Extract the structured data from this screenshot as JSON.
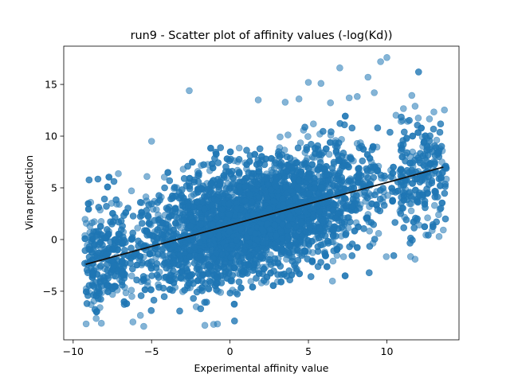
{
  "chart_data": {
    "type": "scatter",
    "title": "run9 - Scatter plot of affinity values (-log(Kd))",
    "xlabel": "Experimental affinity value",
    "ylabel": "Vina prediction",
    "xlim": [
      -10.6,
      14.6
    ],
    "ylim": [
      -9.7,
      18.7
    ],
    "xticks": [
      -10,
      -5,
      0,
      5,
      10
    ],
    "yticks": [
      -5,
      0,
      5,
      10,
      15
    ],
    "grid": false,
    "legend": "none",
    "series": [
      {
        "kind": "points",
        "point_count": 6000,
        "color": "#1f77b4",
        "alpha": 0.55,
        "x_range": [
          -9.3,
          13.8
        ],
        "y_range": [
          -8.5,
          17.6
        ],
        "trend_slope": 0.41,
        "trend_intercept": 1.3,
        "residual_sd": 2.8,
        "notable_points": [
          {
            "x": 10.0,
            "y": 17.6
          },
          {
            "x": 9.6,
            "y": 17.2
          },
          {
            "x": 7.0,
            "y": 16.6
          },
          {
            "x": 8.8,
            "y": 15.7
          },
          {
            "x": 5.0,
            "y": 15.2
          },
          {
            "x": 5.8,
            "y": 15.1
          },
          {
            "x": -2.6,
            "y": 14.4
          },
          {
            "x": 9.2,
            "y": 14.2
          },
          {
            "x": 1.8,
            "y": 13.5
          },
          {
            "x": 4.4,
            "y": 13.6
          },
          {
            "x": 7.6,
            "y": 13.7
          },
          {
            "x": 11.8,
            "y": 12.9
          },
          {
            "x": -5.0,
            "y": 9.5
          },
          {
            "x": -8.2,
            "y": -8.1
          },
          {
            "x": -5.5,
            "y": -8.4
          },
          {
            "x": -1.6,
            "y": -8.3
          },
          {
            "x": 11.8,
            "y": -1.9
          },
          {
            "x": 13.3,
            "y": 2.4
          }
        ]
      },
      {
        "kind": "line",
        "color": "#111111",
        "x": [
          -9.2,
          13.6
        ],
        "y": [
          -2.4,
          7.0
        ]
      }
    ]
  }
}
